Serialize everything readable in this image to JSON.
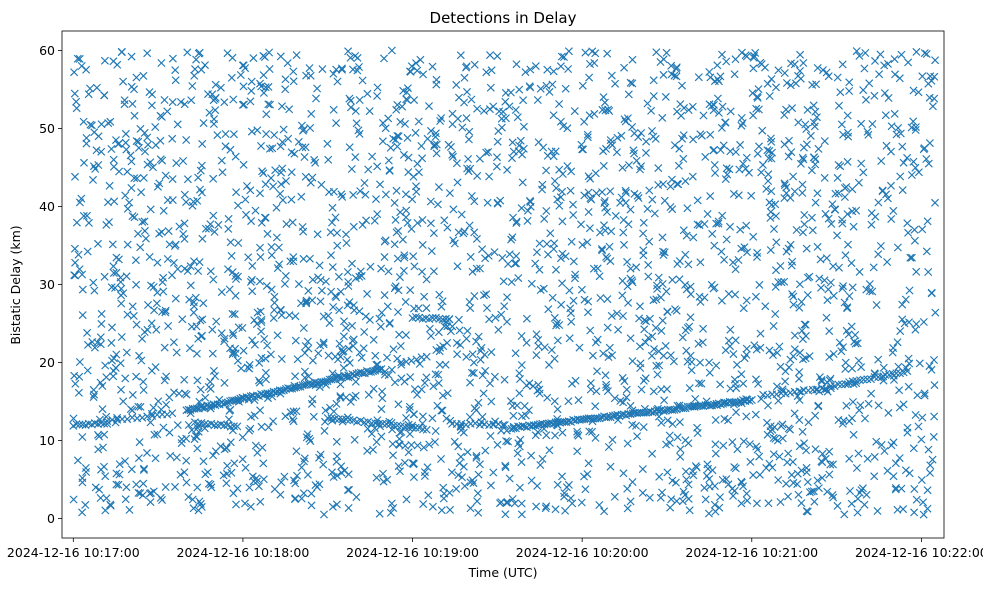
{
  "chart_data": {
    "type": "scatter",
    "title": "Detections in Delay",
    "xlabel": "Time (UTC)",
    "ylabel": "Bistatic Delay (km)",
    "marker": "x",
    "color": "#1f77b4",
    "grid": false,
    "legend": null,
    "x_unit": "time",
    "xlim": [
      "2024-12-16 10:16:56",
      "2024-12-16 10:22:08"
    ],
    "ylim": [
      -2.5,
      62.5
    ],
    "x_ticks": [
      "2024-12-16 10:17:00",
      "2024-12-16 10:18:00",
      "2024-12-16 10:19:00",
      "2024-12-16 10:20:00",
      "2024-12-16 10:21:00",
      "2024-12-16 10:22:00"
    ],
    "y_ticks": [
      0,
      10,
      20,
      30,
      40,
      50,
      60
    ],
    "tracks": [
      {
        "x": [
          "2024-12-16 10:17:00",
          "2024-12-16 10:17:12"
        ],
        "y": [
          12.0,
          12.2
        ],
        "n": 12
      },
      {
        "x": [
          "2024-12-16 10:17:12",
          "2024-12-16 10:17:35"
        ],
        "y": [
          12.5,
          13.4
        ],
        "n": 14
      },
      {
        "x": [
          "2024-12-16 10:17:40",
          "2024-12-16 10:18:49"
        ],
        "y": [
          13.8,
          19.2
        ],
        "n": 95
      },
      {
        "x": [
          "2024-12-16 10:17:43",
          "2024-12-16 10:17:58"
        ],
        "y": [
          12.3,
          11.8
        ],
        "n": 14
      },
      {
        "x": [
          "2024-12-16 10:18:30",
          "2024-12-16 10:19:05"
        ],
        "y": [
          13.0,
          11.4
        ],
        "n": 28
      },
      {
        "x": [
          "2024-12-16 10:18:56",
          "2024-12-16 10:19:05"
        ],
        "y": [
          20.0,
          20.8
        ],
        "n": 6
      },
      {
        "x": [
          "2024-12-16 10:19:00",
          "2024-12-16 10:19:13"
        ],
        "y": [
          25.8,
          25.5
        ],
        "n": 12
      },
      {
        "x": [
          "2024-12-16 10:18:53",
          "2024-12-16 10:19:04"
        ],
        "y": [
          9.5,
          9.2
        ],
        "n": 6
      },
      {
        "x": [
          "2024-12-16 10:19:14",
          "2024-12-16 10:19:32"
        ],
        "y": [
          12.2,
          12.0
        ],
        "n": 12
      },
      {
        "x": [
          "2024-12-16 10:19:35",
          "2024-12-16 10:21:00"
        ],
        "y": [
          11.6,
          15.2
        ],
        "n": 110
      },
      {
        "x": [
          "2024-12-16 10:21:04",
          "2024-12-16 10:21:28"
        ],
        "y": [
          15.8,
          16.7
        ],
        "n": 16
      },
      {
        "x": [
          "2024-12-16 10:21:28",
          "2024-12-16 10:21:55"
        ],
        "y": [
          17.0,
          18.8
        ],
        "n": 22
      }
    ],
    "clutter": {
      "n": 2600,
      "x_range": [
        "2024-12-16 10:17:00",
        "2024-12-16 10:22:05"
      ],
      "y_range": [
        0.5,
        60
      ]
    }
  }
}
